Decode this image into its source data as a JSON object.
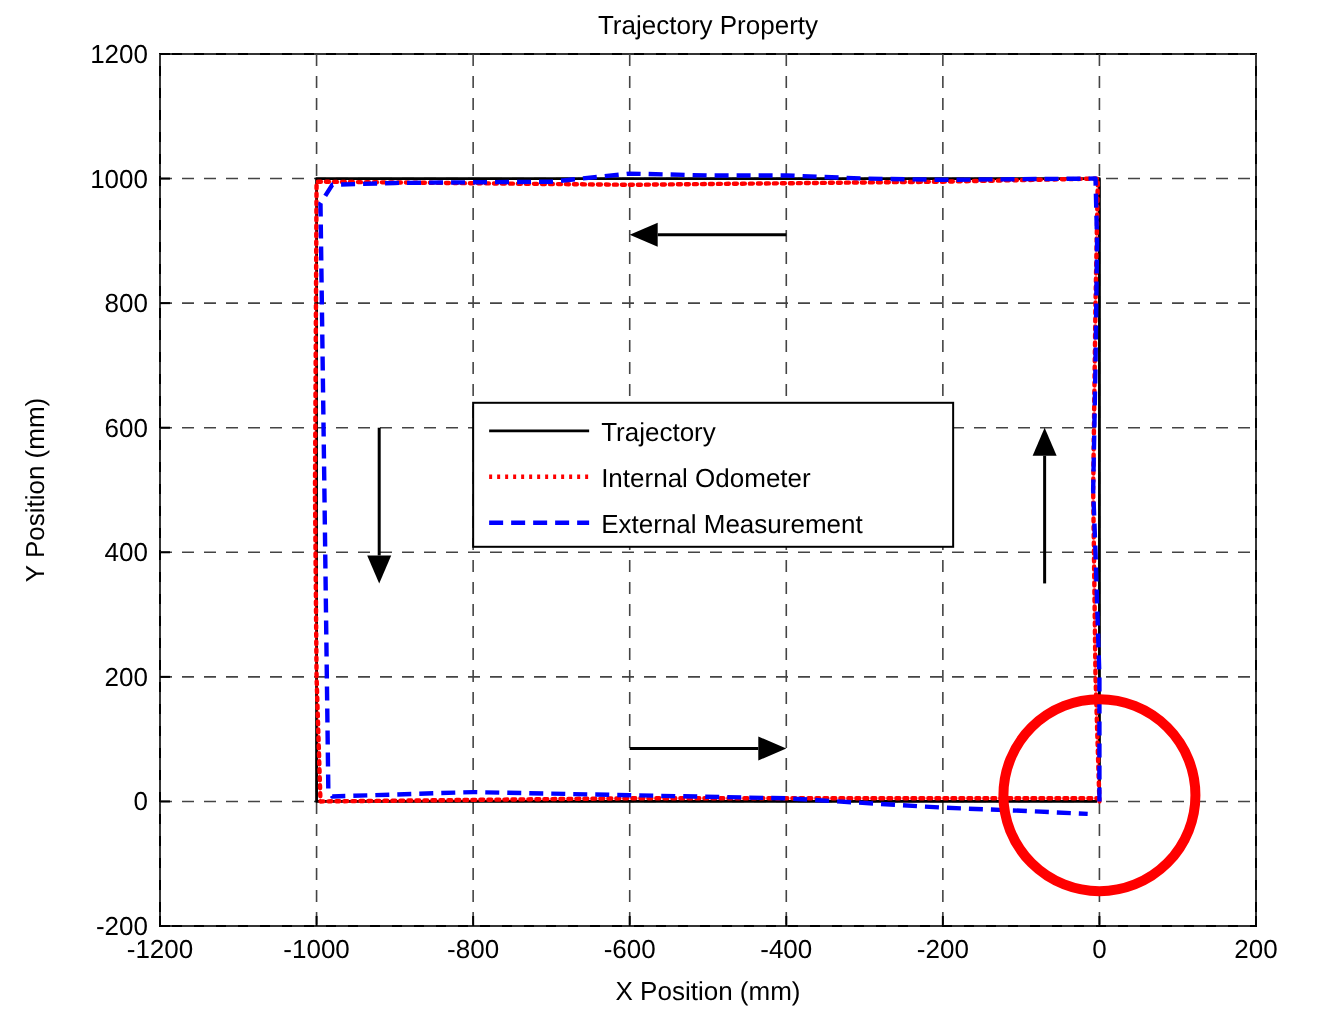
{
  "chart_data": {
    "type": "line",
    "title": "Trajectory Property",
    "xlabel": "X Position (mm)",
    "ylabel": "Y Position (mm)",
    "xlim": [
      -1200,
      200
    ],
    "xticks": [
      -1200,
      -1000,
      -800,
      -600,
      -400,
      -200,
      0,
      200
    ],
    "ylim": [
      -200,
      1200
    ],
    "yticks": [
      -200,
      0,
      200,
      400,
      600,
      800,
      1000,
      1200
    ],
    "grid": true,
    "legend": "center",
    "marker": "none",
    "series": [
      {
        "name": "Trajectory",
        "color": "#000000",
        "line_style": "solid",
        "x": [
          0,
          0,
          -1000,
          -1000,
          -3
        ],
        "values": [
          0,
          1000,
          1000,
          0,
          0
        ]
      },
      {
        "name": "Internal Odometer",
        "color": "#ff0000",
        "line_style": "dotted",
        "x": [
          0,
          -5,
          -8,
          -5,
          -2,
          -200,
          -600,
          -1000,
          -1002,
          -1000,
          -995,
          -600,
          -200,
          0
        ],
        "values": [
          0,
          200,
          500,
          800,
          1000,
          995,
          990,
          995,
          500,
          200,
          0,
          5,
          5,
          5
        ]
      },
      {
        "name": "External Measurement",
        "color": "#0000ff",
        "line_style": "dashed",
        "x": [
          0,
          0,
          -5,
          -8,
          -5,
          -3,
          -5,
          -200,
          -300,
          -400,
          -500,
          -600,
          -700,
          -900,
          -980,
          -995,
          -990,
          -985,
          -980,
          -800,
          -600,
          -400,
          -200,
          -100,
          -15
        ],
        "values": [
          0,
          200,
          400,
          500,
          700,
          900,
          1000,
          998,
          1000,
          1005,
          1005,
          1008,
          995,
          993,
          990,
          960,
          500,
          20,
          8,
          15,
          10,
          5,
          -10,
          -15,
          -20
        ]
      }
    ]
  }
}
